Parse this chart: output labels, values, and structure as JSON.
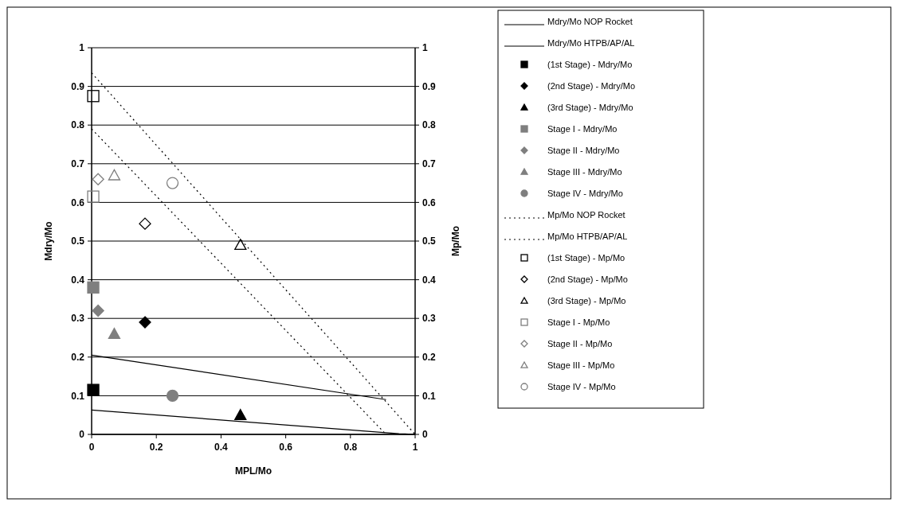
{
  "chart_data": {
    "type": "scatter",
    "xlabel": "MPL/Mo",
    "ylabel": "Mdry/Mo",
    "y2label": "Mp/Mo",
    "xlim": [
      0,
      1
    ],
    "xticks": [
      0,
      0.2,
      0.4,
      0.6,
      0.8,
      1
    ],
    "ylim": [
      0,
      1
    ],
    "yticks": [
      0,
      0.1,
      0.2,
      0.3,
      0.4,
      0.5,
      0.6,
      0.7,
      0.8,
      0.9,
      1
    ],
    "y2lim": [
      0,
      1
    ],
    "y2ticks": [
      0,
      0.1,
      0.2,
      0.3,
      0.4,
      0.5,
      0.6,
      0.7,
      0.8,
      0.9,
      1
    ],
    "grid": "y",
    "legend": "right",
    "series": [
      {
        "name": "Mdry/Mo NOP Rocket",
        "type": "line",
        "line_style": "solid",
        "marker": "none",
        "color": "#000000",
        "x": [
          0,
          0.91
        ],
        "values": [
          0.205,
          0.09
        ]
      },
      {
        "name": "Mdry/Mo HTPB/AP/AL",
        "type": "line",
        "line_style": "solid",
        "marker": "none",
        "color": "#000000",
        "x": [
          0,
          0.95,
          1
        ],
        "values": [
          0.063,
          0.002,
          0
        ]
      },
      {
        "name": "(1st Stage) - Mdry/Mo",
        "marker": "square",
        "color": "#000000",
        "x": [
          0.005
        ],
        "values": [
          0.115
        ]
      },
      {
        "name": "(2nd Stage) - Mdry/Mo",
        "marker": "diamond",
        "color": "#000000",
        "x": [
          0.165
        ],
        "values": [
          0.29
        ]
      },
      {
        "name": "(3rd Stage) - Mdry/Mo",
        "marker": "triangle",
        "color": "#000000",
        "x": [
          0.46
        ],
        "values": [
          0.05
        ]
      },
      {
        "name": "Stage I - Mdry/Mo",
        "marker": "square",
        "color": "#7f7f7f",
        "x": [
          0.005
        ],
        "values": [
          0.38
        ]
      },
      {
        "name": "Stage II - Mdry/Mo",
        "marker": "diamond",
        "color": "#7f7f7f",
        "x": [
          0.02
        ],
        "values": [
          0.32
        ]
      },
      {
        "name": "Stage III - Mdry/Mo",
        "marker": "triangle",
        "color": "#7f7f7f",
        "x": [
          0.07
        ],
        "values": [
          0.26
        ]
      },
      {
        "name": "Stage IV - Mdry/Mo",
        "marker": "circle",
        "color": "#7f7f7f",
        "x": [
          0.25
        ],
        "values": [
          0.1
        ]
      },
      {
        "name": "Mp/Mo NOP Rocket",
        "type": "line",
        "line_style": "dotted",
        "marker": "none",
        "color": "#000000",
        "axis": "y2",
        "x": [
          0,
          0.91
        ],
        "values": [
          0.79,
          0
        ]
      },
      {
        "name": "Mp/Mo HTPB/AP/AL",
        "type": "line",
        "line_style": "dotted",
        "marker": "none",
        "color": "#000000",
        "axis": "y2",
        "x": [
          0,
          1
        ],
        "values": [
          0.935,
          0
        ]
      },
      {
        "name": "(1st Stage) - Mp/Mo",
        "marker": "square",
        "color": "#000000",
        "axis": "y2",
        "x": [
          0.005
        ],
        "values": [
          0.875
        ]
      },
      {
        "name": "(2nd Stage) - Mp/Mo",
        "marker": "diamond",
        "color": "#000000",
        "axis": "y2",
        "x": [
          0.165
        ],
        "values": [
          0.545
        ]
      },
      {
        "name": "(3rd Stage) - Mp/Mo",
        "marker": "triangle",
        "color": "#000000",
        "axis": "y2",
        "x": [
          0.46
        ],
        "values": [
          0.49
        ]
      },
      {
        "name": "Stage I - Mp/Mo",
        "marker": "square",
        "color": "#7f7f7f",
        "axis": "y2",
        "x": [
          0.005
        ],
        "values": [
          0.615
        ]
      },
      {
        "name": "Stage II - Mp/Mo",
        "marker": "diamond",
        "color": "#7f7f7f",
        "axis": "y2",
        "x": [
          0.02
        ],
        "values": [
          0.66
        ]
      },
      {
        "name": "Stage III - Mp/Mo",
        "marker": "triangle",
        "color": "#7f7f7f",
        "axis": "y2",
        "x": [
          0.07
        ],
        "values": [
          0.67
        ]
      },
      {
        "name": "Stage IV - Mp/Mo",
        "marker": "circle",
        "color": "#7f7f7f",
        "axis": "y2",
        "x": [
          0.25
        ],
        "values": [
          0.65
        ]
      }
    ]
  }
}
